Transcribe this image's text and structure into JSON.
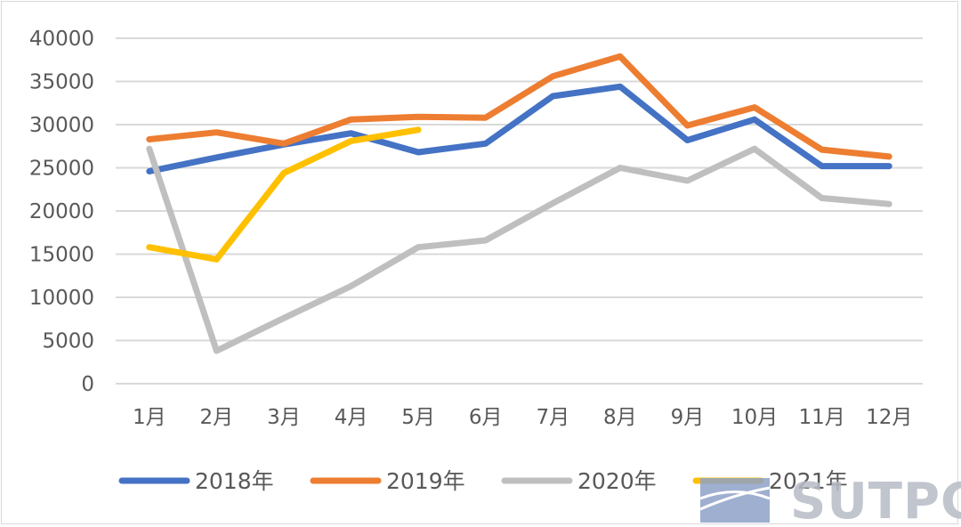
{
  "chart_data": {
    "type": "line",
    "categories": [
      "1月",
      "2月",
      "3月",
      "4月",
      "5月",
      "6月",
      "7月",
      "8月",
      "9月",
      "10月",
      "11月",
      "12月"
    ],
    "series": [
      {
        "name": "2018年",
        "color": "#4472c4",
        "values": [
          24600,
          26200,
          27700,
          29000,
          26800,
          27800,
          33300,
          34400,
          28200,
          30600,
          25200,
          25200
        ]
      },
      {
        "name": "2019年",
        "color": "#ed7d31",
        "values": [
          28300,
          29100,
          27800,
          30600,
          30900,
          30800,
          35600,
          37900,
          29900,
          32000,
          27100,
          26300
        ]
      },
      {
        "name": "2020年",
        "color": "#bfbfbf",
        "values": [
          27200,
          3800,
          7600,
          11300,
          15800,
          16600,
          20900,
          25000,
          23500,
          27200,
          21500,
          20800
        ]
      },
      {
        "name": "2021年",
        "color": "#ffc000",
        "values": [
          15800,
          14400,
          24400,
          28100,
          29400,
          null,
          null,
          null,
          null,
          null,
          null,
          null
        ]
      }
    ],
    "yticks": [
      "0",
      "5000",
      "10000",
      "15000",
      "20000",
      "25000",
      "30000",
      "35000",
      "40000"
    ],
    "ylim": [
      0,
      40000
    ],
    "grid": true,
    "legend": "bottom"
  },
  "watermark": {
    "text": "SUTPC"
  }
}
